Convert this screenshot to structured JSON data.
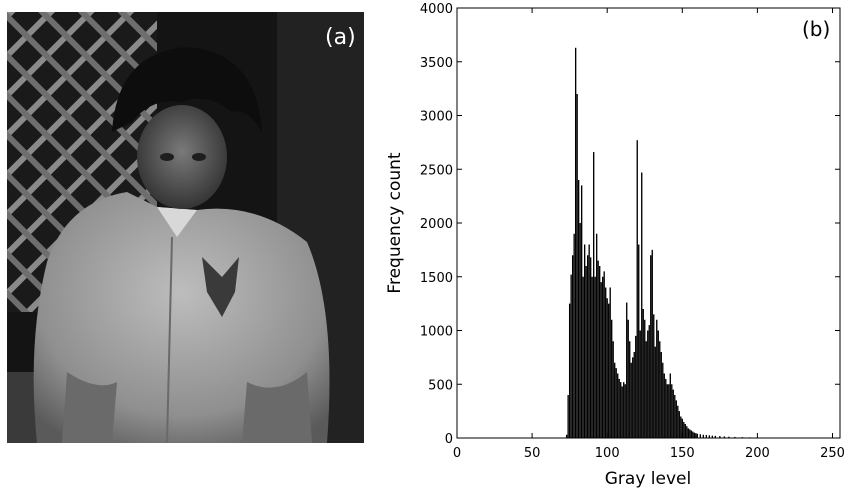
{
  "panel_a": {
    "label": "(a)",
    "description_icon": "grayscale-photo-of-child"
  },
  "chart_data": {
    "type": "bar",
    "panel_label": "(b)",
    "title": "",
    "xlabel": "Gray level",
    "ylabel": "Frequency count",
    "xlim": [
      0,
      255
    ],
    "ylim": [
      0,
      4000
    ],
    "xticks": [
      0,
      50,
      100,
      150,
      200,
      250
    ],
    "yticks": [
      0,
      500,
      1000,
      1500,
      2000,
      2500,
      3000,
      3500,
      4000
    ],
    "grid": false,
    "bar_color": "#000000",
    "x": [
      73,
      74,
      75,
      76,
      77,
      78,
      79,
      80,
      81,
      82,
      83,
      84,
      85,
      86,
      87,
      88,
      89,
      90,
      91,
      92,
      93,
      94,
      95,
      96,
      97,
      98,
      99,
      100,
      101,
      102,
      103,
      104,
      105,
      106,
      107,
      108,
      109,
      110,
      111,
      112,
      113,
      114,
      115,
      116,
      117,
      118,
      119,
      120,
      121,
      122,
      123,
      124,
      125,
      126,
      127,
      128,
      129,
      130,
      131,
      132,
      133,
      134,
      135,
      136,
      137,
      138,
      139,
      140,
      141,
      142,
      143,
      144,
      145,
      146,
      147,
      148,
      149,
      150,
      151,
      152,
      153,
      154,
      155,
      156,
      157,
      158,
      159,
      160,
      162,
      164,
      166,
      168,
      170,
      172,
      175,
      178,
      181,
      185,
      190,
      195,
      200,
      205,
      210,
      215,
      220
    ],
    "values": [
      30,
      400,
      1250,
      1520,
      1700,
      1900,
      3630,
      3200,
      2400,
      2000,
      2350,
      1500,
      1800,
      1600,
      1700,
      1800,
      1680,
      1500,
      2660,
      1500,
      1900,
      1650,
      1600,
      1450,
      1500,
      1550,
      1400,
      1300,
      1250,
      1400,
      1100,
      900,
      700,
      650,
      600,
      550,
      520,
      480,
      520,
      500,
      1260,
      1100,
      900,
      700,
      750,
      800,
      950,
      2770,
      1800,
      1000,
      2470,
      1200,
      1100,
      900,
      1000,
      1050,
      1700,
      1750,
      1150,
      850,
      1100,
      1000,
      900,
      800,
      700,
      600,
      550,
      500,
      500,
      600,
      500,
      450,
      400,
      350,
      300,
      250,
      200,
      180,
      150,
      130,
      110,
      90,
      80,
      70,
      60,
      50,
      45,
      40,
      35,
      30,
      28,
      25,
      22,
      20,
      18,
      15,
      12,
      10,
      8,
      6,
      5,
      4,
      3,
      2,
      1
    ]
  }
}
